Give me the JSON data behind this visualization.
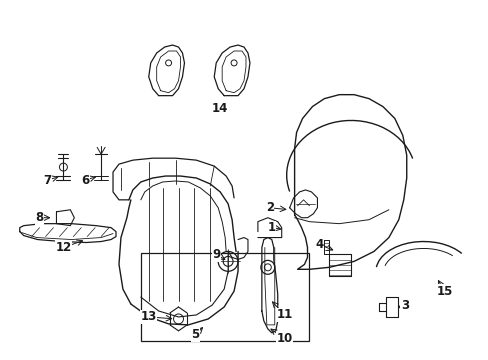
{
  "background_color": "#ffffff",
  "line_color": "#1a1a1a",
  "figsize": [
    4.89,
    3.6
  ],
  "dpi": 100,
  "label_fontsize": 8.5,
  "lw": 0.9
}
